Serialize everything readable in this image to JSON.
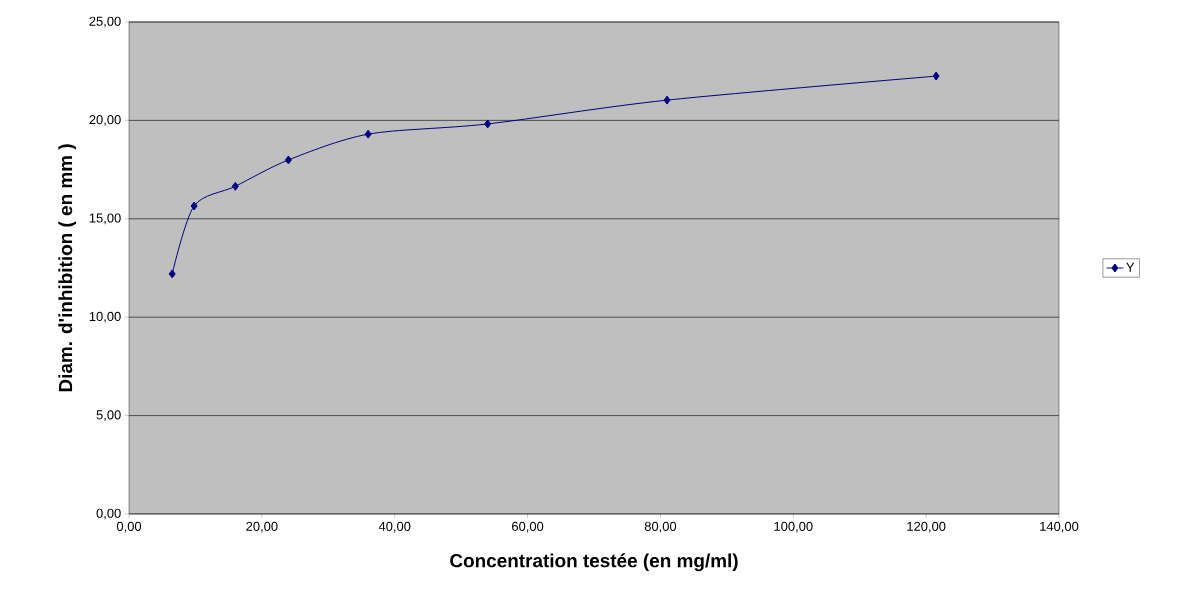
{
  "chart_data": {
    "type": "line",
    "xlabel": "Concentration testée (en mg/ml)",
    "ylabel": "Diam. d'inhibition ( en mm )",
    "x": [
      6.5,
      9.8,
      16,
      24,
      36,
      54,
      81,
      121.5
    ],
    "series": [
      {
        "name": "Y",
        "color": "#000080",
        "values": [
          12.2,
          15.65,
          16.65,
          17.99,
          19.3,
          19.82,
          21.03,
          22.25
        ]
      }
    ],
    "xlim": [
      0,
      140
    ],
    "xticks": [
      {
        "value": 0,
        "label": "0,00"
      },
      {
        "value": 20,
        "label": "20,00"
      },
      {
        "value": 40,
        "label": "40,00"
      },
      {
        "value": 60,
        "label": "60,00"
      },
      {
        "value": 80,
        "label": "80,00"
      },
      {
        "value": 100,
        "label": "100,00"
      },
      {
        "value": 120,
        "label": "120,00"
      },
      {
        "value": 140,
        "label": "140,00"
      }
    ],
    "ylim": [
      0,
      25
    ],
    "yticks": [
      {
        "value": 0,
        "label": "0,00"
      },
      {
        "value": 5,
        "label": "5,00"
      },
      {
        "value": 10,
        "label": "10,00"
      },
      {
        "value": 15,
        "label": "15,00"
      },
      {
        "value": 20,
        "label": "20,00"
      },
      {
        "value": 25,
        "label": "25,00"
      }
    ],
    "grid": "y",
    "legend": "right",
    "marker": "diamond",
    "line_style": "solid"
  }
}
